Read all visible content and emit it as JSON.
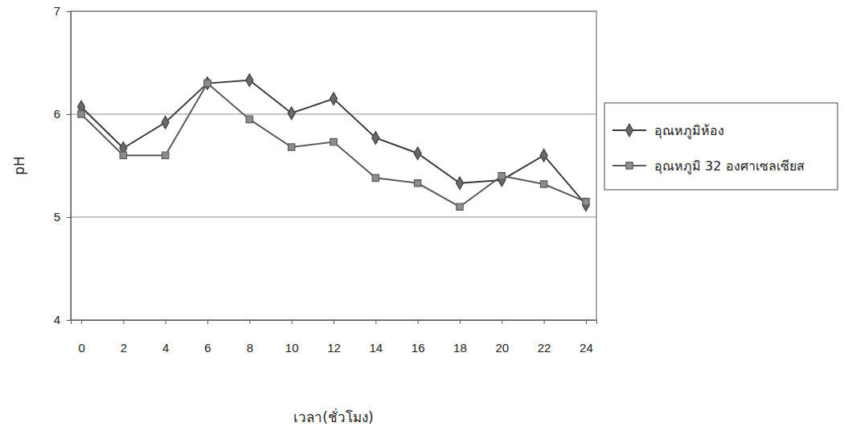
{
  "chart_data": {
    "type": "line",
    "x_label": "เวลา(ชั่วโมง)",
    "y_label": "pH",
    "categories": [
      "0",
      "2",
      "4",
      "6",
      "8",
      "10",
      "12",
      "14",
      "16",
      "18",
      "20",
      "22",
      "24"
    ],
    "series": [
      {
        "name": "อุณหภูมิห้อง",
        "color": "#3a3a3a",
        "marker": "diamond",
        "line_style": "solid",
        "values": [
          6.07,
          5.67,
          5.92,
          6.3,
          6.33,
          6.01,
          6.15,
          5.77,
          5.62,
          5.33,
          5.36,
          5.6,
          5.12
        ]
      },
      {
        "name": "อุณหภูมิ 32 องศาเซลเซียส",
        "color": "#5a5a5a",
        "marker": "square",
        "line_style": "solid",
        "values": [
          6.0,
          5.6,
          5.6,
          6.3,
          5.95,
          5.68,
          5.73,
          5.38,
          5.33,
          5.1,
          5.4,
          5.32,
          5.15
        ]
      }
    ],
    "ylim": [
      4,
      7
    ],
    "yticks": [
      4,
      5,
      6,
      7
    ],
    "grid": true,
    "legend": "right"
  }
}
